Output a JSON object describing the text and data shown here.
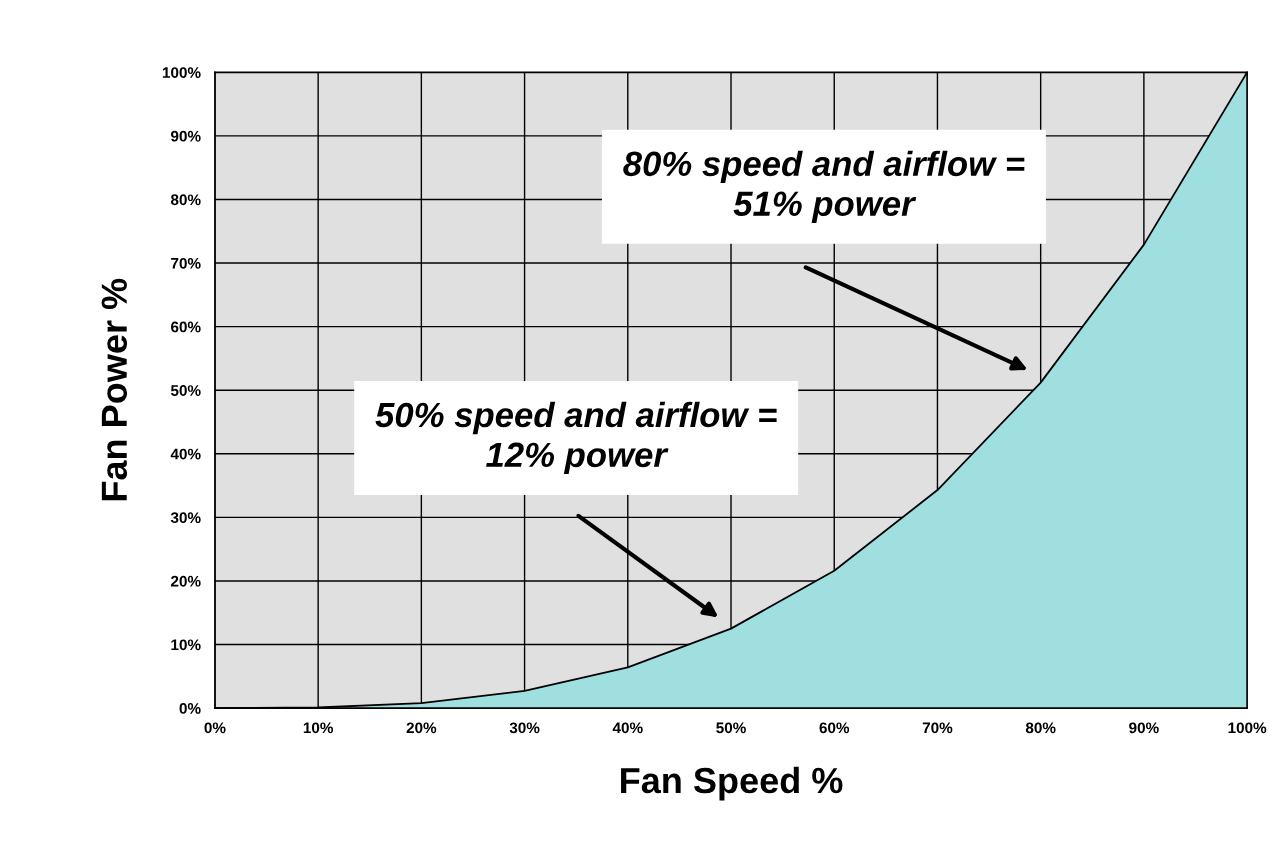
{
  "chart_data": {
    "type": "area",
    "xlabel": "Fan Speed %",
    "ylabel": "Fan Power %",
    "x": [
      0,
      10,
      20,
      30,
      40,
      50,
      60,
      70,
      80,
      90,
      100
    ],
    "series": [
      {
        "color": "#a0dfe0",
        "values": [
          0,
          0.1,
          0.8,
          2.7,
          6.4,
          12.5,
          21.6,
          34.3,
          51.2,
          72.9,
          100
        ]
      }
    ],
    "xlim": [
      0,
      100
    ],
    "ylim": [
      0,
      100
    ],
    "xticks": [
      {
        "value": 0,
        "label": "0%"
      },
      {
        "value": 10,
        "label": "10%"
      },
      {
        "value": 20,
        "label": "20%"
      },
      {
        "value": 30,
        "label": "30%"
      },
      {
        "value": 40,
        "label": "40%"
      },
      {
        "value": 50,
        "label": "50%"
      },
      {
        "value": 60,
        "label": "60%"
      },
      {
        "value": 70,
        "label": "70%"
      },
      {
        "value": 80,
        "label": "80%"
      },
      {
        "value": 90,
        "label": "90%"
      },
      {
        "value": 100,
        "label": "100%"
      }
    ],
    "yticks": [
      {
        "value": 0,
        "label": "0%"
      },
      {
        "value": 10,
        "label": "10%"
      },
      {
        "value": 20,
        "label": "20%"
      },
      {
        "value": 30,
        "label": "30%"
      },
      {
        "value": 40,
        "label": "40%"
      },
      {
        "value": 50,
        "label": "50%"
      },
      {
        "value": 60,
        "label": "60%"
      },
      {
        "value": 70,
        "label": "70%"
      },
      {
        "value": 80,
        "label": "80%"
      },
      {
        "value": 90,
        "label": "90%"
      },
      {
        "value": 100,
        "label": "100%"
      }
    ],
    "annotations": [
      "80% speed and airflow =\n51% power",
      "50% speed and airflow =\n12% power"
    ],
    "grid": true
  }
}
